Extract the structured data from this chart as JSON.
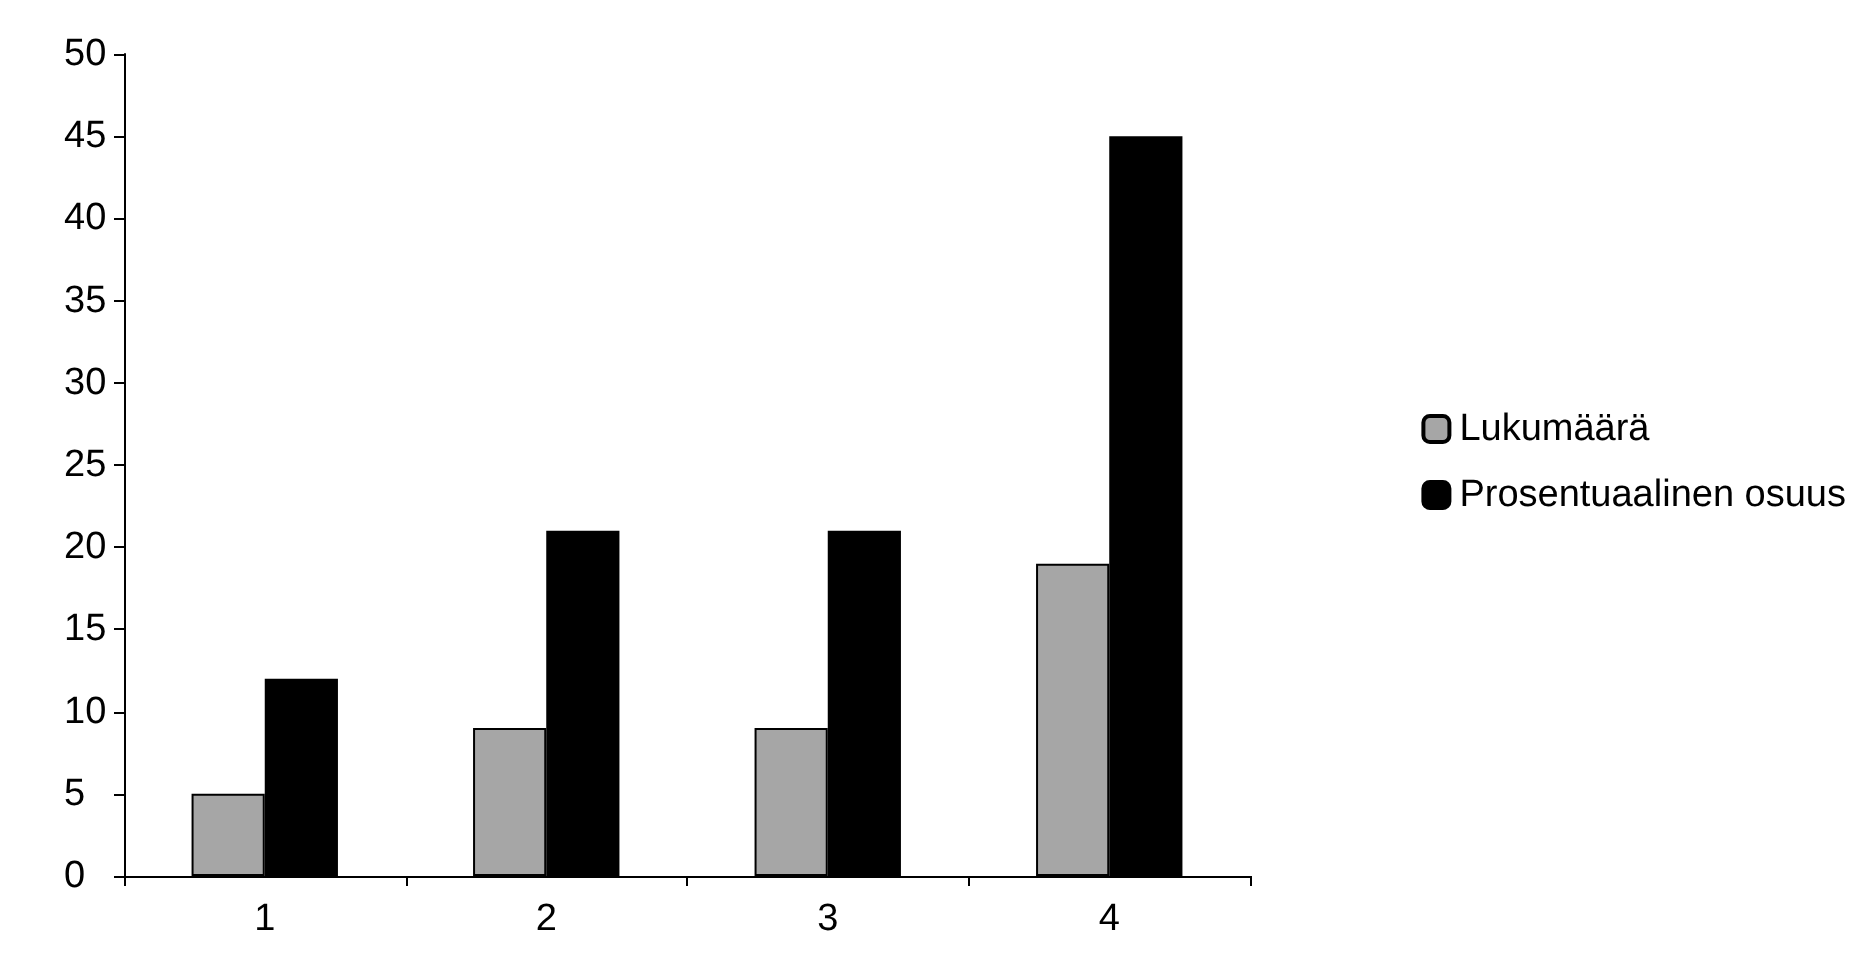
{
  "chart_data": {
    "type": "bar",
    "categories": [
      "1",
      "2",
      "3",
      "4"
    ],
    "series": [
      {
        "name": "Lukumäärä",
        "color": "#a6a6a6",
        "values": [
          5,
          9,
          9,
          19
        ]
      },
      {
        "name": "Prosentuaalinen osuus",
        "color": "#000000",
        "values": [
          12,
          21,
          21,
          45
        ]
      }
    ],
    "ylim": [
      0,
      50
    ],
    "yticks": [
      0,
      5,
      10,
      15,
      20,
      25,
      30,
      35,
      40,
      45,
      50
    ],
    "grid": false,
    "legend": "right"
  }
}
